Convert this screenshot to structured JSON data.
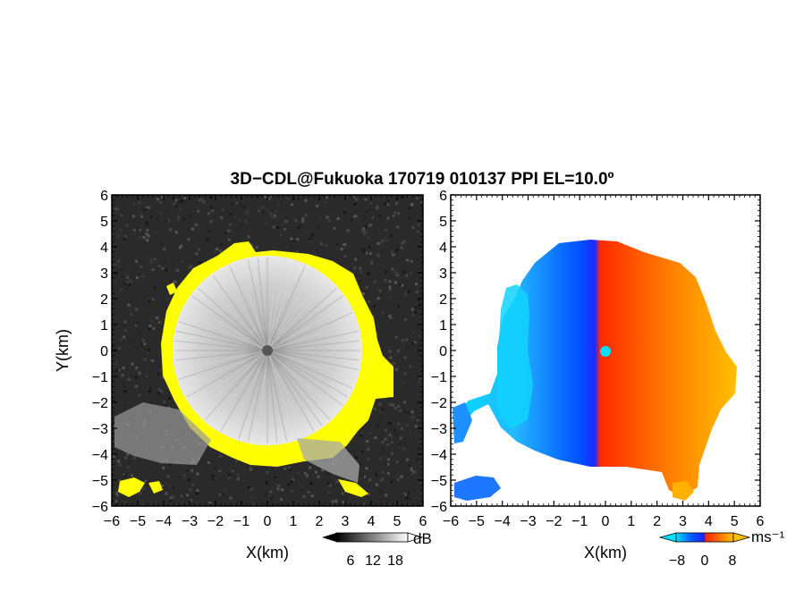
{
  "title": "3D−CDL@Fukuoka 170719 010137 PPI EL=10.0º",
  "colors": {
    "background": "#ffffff",
    "echo_mask": "#ffff00",
    "velocity_negative": "#0048ff",
    "velocity_zero": "#00e0ff",
    "velocity_positive": "#ff3300",
    "velocity_far": "#ffc000"
  },
  "chart_data": [
    {
      "type": "heatmap",
      "name": "snr-ppi",
      "xlabel": "X(km)",
      "ylabel": "Y(km)",
      "xlim": [
        -6,
        6
      ],
      "ylim": [
        -6,
        6
      ],
      "x_ticks": [
        "−6",
        "−5",
        "−4",
        "−3",
        "−2",
        "−1",
        "0",
        "1",
        "2",
        "3",
        "4",
        "5",
        "6"
      ],
      "y_ticks": [
        "6",
        "5",
        "4",
        "3",
        "2",
        "1",
        "0",
        "−1",
        "−2",
        "−3",
        "−4",
        "−5",
        "−6"
      ],
      "colorbar": {
        "unit": "dB",
        "ticks": [
          "6",
          "12",
          "18"
        ],
        "palette": "grayscale"
      },
      "grid": false
    },
    {
      "type": "heatmap",
      "name": "doppler-velocity-ppi",
      "xlabel": "X(km)",
      "ylabel": "",
      "xlim": [
        -6,
        6
      ],
      "ylim": [
        -6,
        6
      ],
      "x_ticks": [
        "−6",
        "−5",
        "−4",
        "−3",
        "−2",
        "−1",
        "0",
        "1",
        "2",
        "3",
        "4",
        "5",
        "6"
      ],
      "y_ticks": [
        "6",
        "5",
        "4",
        "3",
        "2",
        "1",
        "0",
        "−1",
        "−2",
        "−3",
        "−4",
        "−5",
        "−6"
      ],
      "colorbar": {
        "unit": "ms⁻¹",
        "ticks": [
          "−8",
          "0",
          "8"
        ],
        "palette": "blue-to-red"
      },
      "grid": false
    }
  ]
}
